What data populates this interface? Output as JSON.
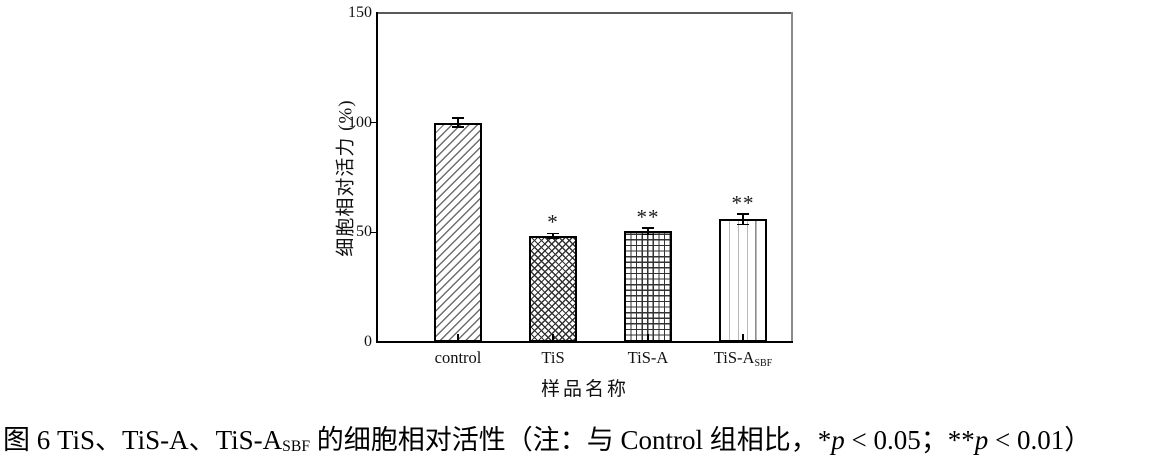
{
  "chart_data": {
    "type": "bar",
    "title": "",
    "xlabel": "样品名称",
    "ylabel": "细胞相对活力 (%)",
    "ylim": [
      0,
      150
    ],
    "yticks": [
      0,
      50,
      100,
      150
    ],
    "grid": false,
    "legend": "none",
    "categories": [
      "control",
      "TiS",
      "TiS-A",
      "TiS-A_SBF"
    ],
    "category_labels": [
      {
        "text": "control",
        "sub": ""
      },
      {
        "text": "TiS",
        "sub": ""
      },
      {
        "text": "TiS-A",
        "sub": ""
      },
      {
        "text": "TiS-A",
        "sub": "SBF"
      }
    ],
    "values": [
      100,
      48.5,
      50.5,
      56
    ],
    "errors": [
      2,
      1,
      1.5,
      2.5
    ],
    "significance": [
      "",
      "*",
      "**",
      "**"
    ],
    "hatches": [
      "diagonal",
      "cross-diagonal",
      "grid",
      "vertical"
    ],
    "colors": {
      "bar_fill": "#ffffff",
      "bar_edge": "#000000",
      "error_bar": "#000000",
      "text": "#111111",
      "frame_dark": "#000000",
      "frame_gray": "#8a8a8a"
    }
  },
  "caption": {
    "segments": [
      {
        "text": "图 6 TiS、TiS-A、TiS-A",
        "style": "normal"
      },
      {
        "text": "SBF",
        "style": "sub"
      },
      {
        "text": " 的细胞相对活性（注：与 Control 组相比，",
        "style": "normal"
      },
      {
        "text": "*",
        "style": "normal"
      },
      {
        "text": "p",
        "style": "italic"
      },
      {
        "text": " < 0.05；",
        "style": "normal"
      },
      {
        "text": "**",
        "style": "normal"
      },
      {
        "text": "p",
        "style": "italic"
      },
      {
        "text": " < 0.01）",
        "style": "normal"
      }
    ]
  }
}
